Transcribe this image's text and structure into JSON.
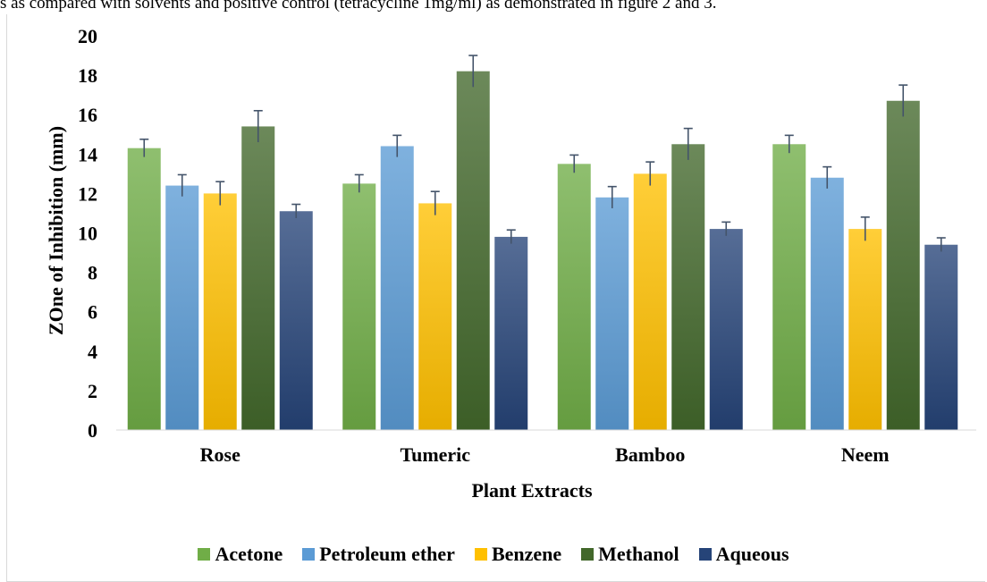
{
  "page": {
    "top_text": "s as compared with solvents and positive control (tetracycline 1mg/ml) as demonstrated in figure 2 and 3."
  },
  "chart_data": {
    "type": "bar",
    "title": "",
    "xlabel": "Plant Extracts",
    "ylabel": "ZOne of Inhibition (mm)",
    "ylim": [
      0,
      20
    ],
    "yticks": [
      "0",
      "2",
      "4",
      "6",
      "8",
      "10",
      "12",
      "14",
      "16",
      "18",
      "20"
    ],
    "grid": false,
    "legend_position": "bottom",
    "error_bars": true,
    "categories": [
      "Rose",
      "Tumeric",
      "Bamboo",
      "Neem"
    ],
    "series": [
      {
        "name": "Acetone",
        "color": "#70ad47",
        "values": [
          14.3,
          12.5,
          13.5,
          14.5
        ],
        "errors": [
          0.45,
          0.45,
          0.45,
          0.45
        ]
      },
      {
        "name": "Petroleum ether",
        "color": "#5b9bd5",
        "values": [
          12.4,
          14.4,
          11.8,
          12.8
        ],
        "errors": [
          0.55,
          0.55,
          0.55,
          0.55
        ]
      },
      {
        "name": "Benzene",
        "color": "#ffc000",
        "values": [
          12.0,
          11.5,
          13.0,
          10.2
        ],
        "errors": [
          0.6,
          0.6,
          0.6,
          0.6
        ]
      },
      {
        "name": "Methanol",
        "color": "#43682b",
        "values": [
          15.4,
          18.2,
          14.5,
          16.7
        ],
        "errors": [
          0.8,
          0.8,
          0.8,
          0.8
        ]
      },
      {
        "name": "Aqueous",
        "color": "#264478",
        "values": [
          11.1,
          9.8,
          10.2,
          9.4
        ],
        "errors": [
          0.35,
          0.35,
          0.35,
          0.35
        ]
      }
    ]
  }
}
